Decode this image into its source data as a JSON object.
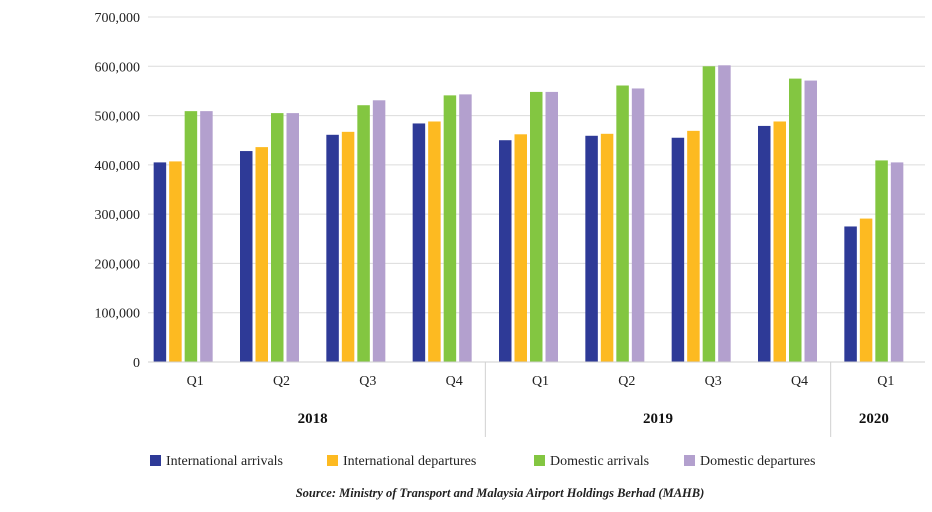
{
  "chart_data": {
    "type": "bar",
    "groups": [
      {
        "year": "2018",
        "quarters": [
          "Q1",
          "Q2",
          "Q3",
          "Q4"
        ]
      },
      {
        "year": "2019",
        "quarters": [
          "Q1",
          "Q2",
          "Q3",
          "Q4"
        ]
      },
      {
        "year": "2020",
        "quarters": [
          "Q1"
        ]
      }
    ],
    "categories": [
      "Q1",
      "Q2",
      "Q3",
      "Q4",
      "Q1",
      "Q2",
      "Q3",
      "Q4",
      "Q1"
    ],
    "series": [
      {
        "name": "International arrivals",
        "color": "#2E3A97",
        "values": [
          405000,
          428000,
          461000,
          484000,
          450000,
          459000,
          455000,
          479000,
          275000
        ]
      },
      {
        "name": "International departures",
        "color": "#FDBA21",
        "values": [
          407000,
          436000,
          467000,
          488000,
          462000,
          463000,
          469000,
          488000,
          291000
        ]
      },
      {
        "name": "Domestic arrivals",
        "color": "#83C641",
        "values": [
          509000,
          505000,
          521000,
          541000,
          548000,
          561000,
          600000,
          575000,
          409000
        ]
      },
      {
        "name": "Domestic departures",
        "color": "#B3A0CE",
        "values": [
          509000,
          505000,
          531000,
          543000,
          548000,
          555000,
          602000,
          571000,
          405000
        ]
      }
    ],
    "ylim": [
      0,
      700000
    ],
    "yticks": [
      "0",
      "100,000",
      "200,000",
      "300,000",
      "400,000",
      "500,000",
      "600,000",
      "700,000"
    ],
    "legend_position": "bottom",
    "grid": true
  },
  "source_note": "Source: Ministry of Transport and Malaysia Airport Holdings Berhad (MAHB)"
}
